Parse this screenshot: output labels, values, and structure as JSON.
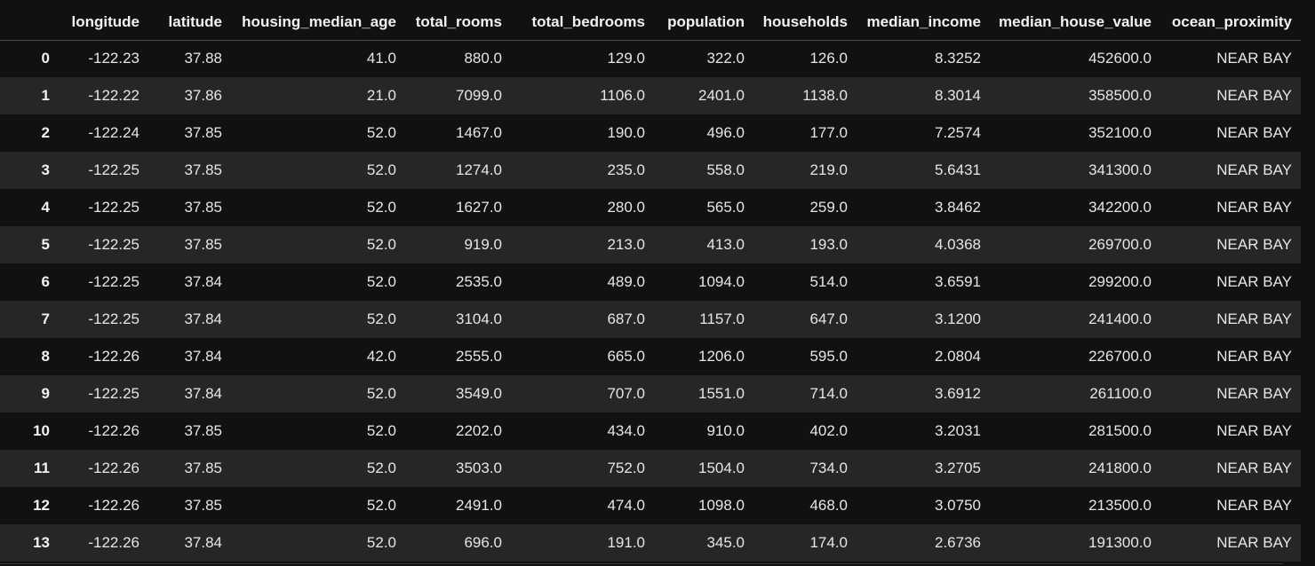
{
  "dataframe": {
    "columns": [
      "",
      "longitude",
      "latitude",
      "housing_median_age",
      "total_rooms",
      "total_bedrooms",
      "population",
      "households",
      "median_income",
      "median_house_value",
      "ocean_proximity"
    ],
    "rows": [
      {
        "index": "0",
        "cells": [
          "-122.23",
          "37.88",
          "41.0",
          "880.0",
          "129.0",
          "322.0",
          "126.0",
          "8.3252",
          "452600.0",
          "NEAR BAY"
        ]
      },
      {
        "index": "1",
        "cells": [
          "-122.22",
          "37.86",
          "21.0",
          "7099.0",
          "1106.0",
          "2401.0",
          "1138.0",
          "8.3014",
          "358500.0",
          "NEAR BAY"
        ]
      },
      {
        "index": "2",
        "cells": [
          "-122.24",
          "37.85",
          "52.0",
          "1467.0",
          "190.0",
          "496.0",
          "177.0",
          "7.2574",
          "352100.0",
          "NEAR BAY"
        ]
      },
      {
        "index": "3",
        "cells": [
          "-122.25",
          "37.85",
          "52.0",
          "1274.0",
          "235.0",
          "558.0",
          "219.0",
          "5.6431",
          "341300.0",
          "NEAR BAY"
        ]
      },
      {
        "index": "4",
        "cells": [
          "-122.25",
          "37.85",
          "52.0",
          "1627.0",
          "280.0",
          "565.0",
          "259.0",
          "3.8462",
          "342200.0",
          "NEAR BAY"
        ]
      },
      {
        "index": "5",
        "cells": [
          "-122.25",
          "37.85",
          "52.0",
          "919.0",
          "213.0",
          "413.0",
          "193.0",
          "4.0368",
          "269700.0",
          "NEAR BAY"
        ]
      },
      {
        "index": "6",
        "cells": [
          "-122.25",
          "37.84",
          "52.0",
          "2535.0",
          "489.0",
          "1094.0",
          "514.0",
          "3.6591",
          "299200.0",
          "NEAR BAY"
        ]
      },
      {
        "index": "7",
        "cells": [
          "-122.25",
          "37.84",
          "52.0",
          "3104.0",
          "687.0",
          "1157.0",
          "647.0",
          "3.1200",
          "241400.0",
          "NEAR BAY"
        ]
      },
      {
        "index": "8",
        "cells": [
          "-122.26",
          "37.84",
          "42.0",
          "2555.0",
          "665.0",
          "1206.0",
          "595.0",
          "2.0804",
          "226700.0",
          "NEAR BAY"
        ]
      },
      {
        "index": "9",
        "cells": [
          "-122.25",
          "37.84",
          "52.0",
          "3549.0",
          "707.0",
          "1551.0",
          "714.0",
          "3.6912",
          "261100.0",
          "NEAR BAY"
        ]
      },
      {
        "index": "10",
        "cells": [
          "-122.26",
          "37.85",
          "52.0",
          "2202.0",
          "434.0",
          "910.0",
          "402.0",
          "3.2031",
          "281500.0",
          "NEAR BAY"
        ]
      },
      {
        "index": "11",
        "cells": [
          "-122.26",
          "37.85",
          "52.0",
          "3503.0",
          "752.0",
          "1504.0",
          "734.0",
          "3.2705",
          "241800.0",
          "NEAR BAY"
        ]
      },
      {
        "index": "12",
        "cells": [
          "-122.26",
          "37.85",
          "52.0",
          "2491.0",
          "474.0",
          "1098.0",
          "468.0",
          "3.0750",
          "213500.0",
          "NEAR BAY"
        ]
      },
      {
        "index": "13",
        "cells": [
          "-122.26",
          "37.84",
          "52.0",
          "696.0",
          "191.0",
          "345.0",
          "174.0",
          "2.6736",
          "191300.0",
          "NEAR BAY"
        ]
      }
    ]
  },
  "colors": {
    "background": "#111111",
    "row_alt": "#262626",
    "text": "#e6e6e6",
    "header_border": "#4a4a4a"
  }
}
